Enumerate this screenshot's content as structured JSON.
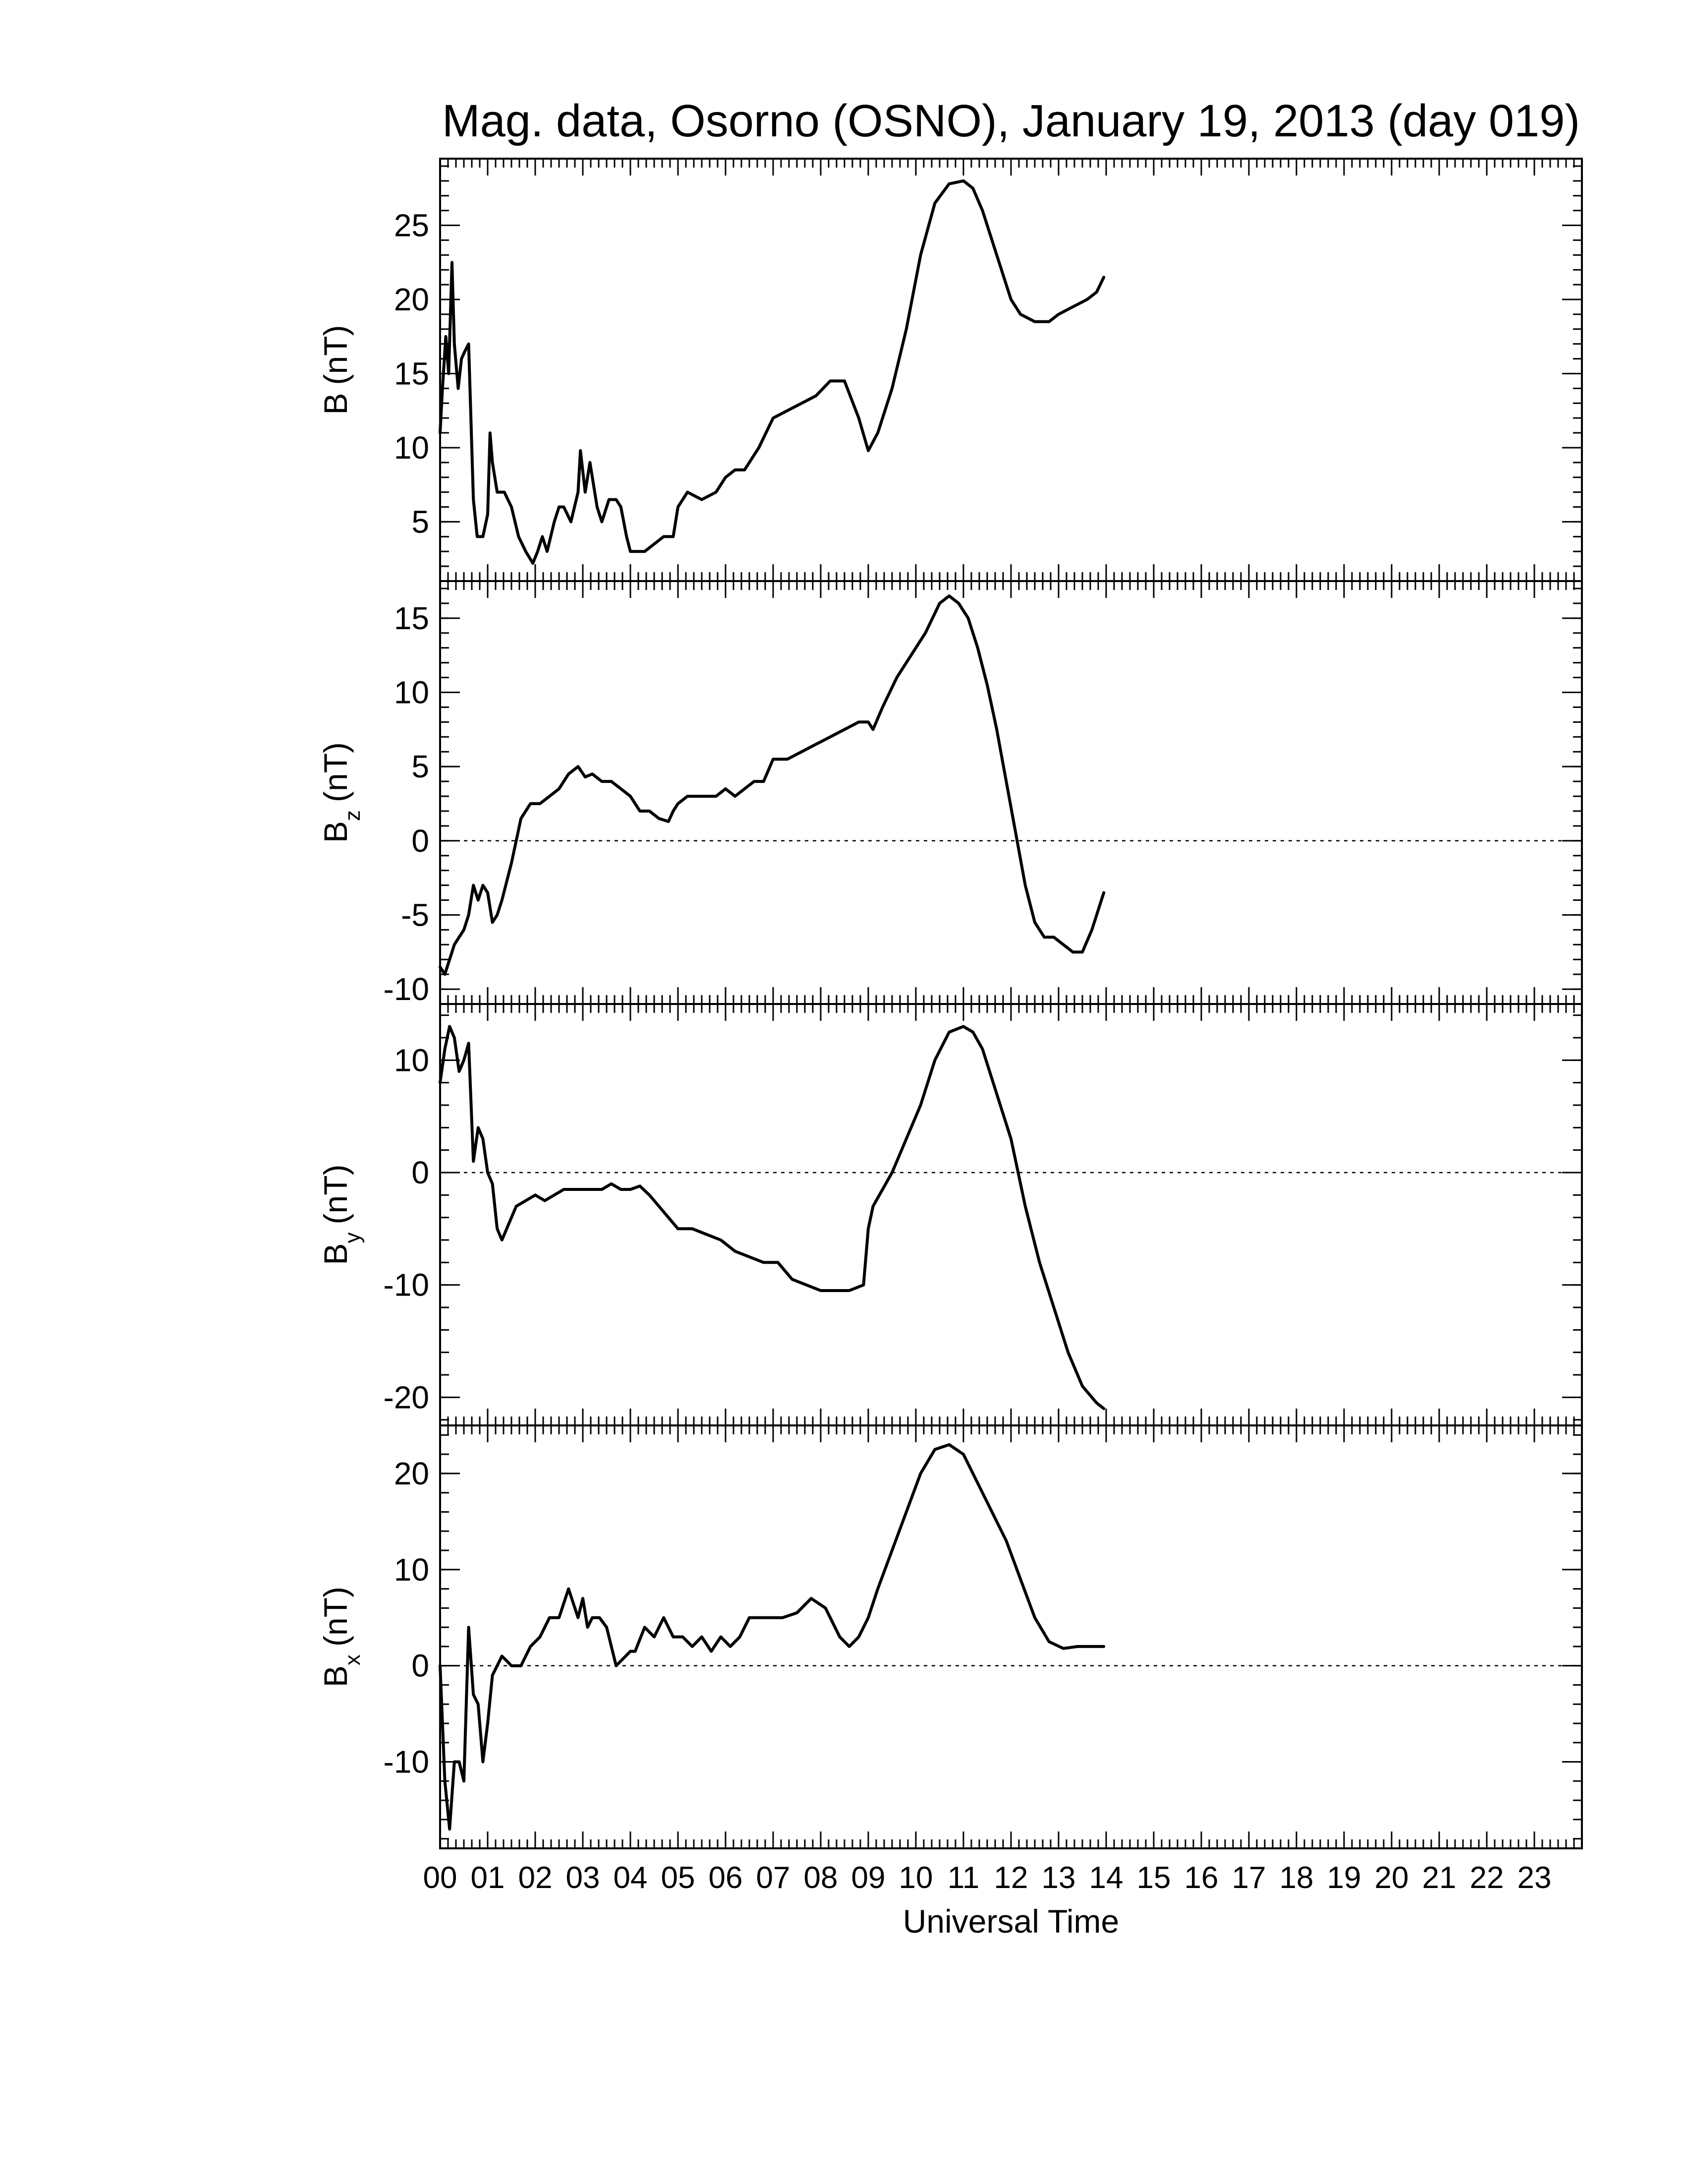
{
  "chart_data": {
    "type": "line",
    "title": "Mag. data, Osorno (OSNO), January 19, 2013 (day 019)",
    "xlabel": "Universal Time",
    "xlim": [
      0,
      24
    ],
    "x_tick_labels": [
      "00",
      "01",
      "02",
      "03",
      "04",
      "05",
      "06",
      "07",
      "08",
      "09",
      "10",
      "11",
      "12",
      "13",
      "14",
      "15",
      "16",
      "17",
      "18",
      "19",
      "20",
      "21",
      "22",
      "23"
    ],
    "line_color": "#000000",
    "panels": [
      {
        "id": "B",
        "ylabel_main": "B",
        "ylabel_sub": "",
        "ylabel_unit": "(nT)",
        "ylim": [
          1,
          29.5
        ],
        "yticks": [
          5,
          10,
          15,
          20,
          25
        ],
        "zero_line": false,
        "series": [
          {
            "x": [
              0,
              0.05,
              0.12,
              0.18,
              0.25,
              0.3,
              0.38,
              0.45,
              0.52,
              0.6,
              0.7,
              0.78,
              0.9,
              1.0,
              1.05,
              1.1,
              1.2,
              1.35,
              1.5,
              1.65,
              1.8,
              1.95,
              2.05,
              2.15,
              2.25,
              2.4,
              2.5,
              2.6,
              2.75,
              2.9,
              2.95,
              3.05,
              3.15,
              3.3,
              3.4,
              3.55,
              3.7,
              3.8,
              3.92,
              4.0,
              4.1,
              4.3,
              4.5,
              4.7,
              4.8,
              4.9,
              5.0,
              5.2,
              5.5,
              5.8,
              6.0,
              6.2,
              6.4,
              6.7,
              7.0,
              7.3,
              7.6,
              7.9,
              8.2,
              8.5,
              8.8,
              9.0,
              9.2,
              9.5,
              9.8,
              10.1,
              10.4,
              10.7,
              11.0,
              11.2,
              11.4,
              11.7,
              12.0,
              12.2,
              12.5,
              12.8,
              13.0,
              13.3,
              13.6,
              13.8,
              13.95
            ],
            "y": [
              11,
              14,
              17.5,
              15,
              22.5,
              17,
              14,
              16,
              16.5,
              17,
              6.5,
              4,
              4,
              5.5,
              11,
              9,
              7,
              7,
              6,
              4,
              3,
              2.2,
              3,
              4,
              3,
              5,
              6,
              6,
              5,
              7,
              9.8,
              7,
              9,
              6,
              5,
              6.5,
              6.5,
              6,
              4,
              3,
              3,
              3,
              3.5,
              4,
              4,
              4,
              6,
              7,
              6.5,
              7,
              8,
              8.5,
              8.5,
              10,
              12,
              12.5,
              13,
              13.5,
              14.5,
              14.5,
              12,
              9.8,
              11,
              14,
              18,
              23,
              26.5,
              27.8,
              28,
              27.5,
              26,
              23,
              20,
              19,
              18.5,
              18.5,
              19,
              19.5,
              20,
              20.5,
              21.5
            ]
          }
        ]
      },
      {
        "id": "Bz",
        "ylabel_main": "B",
        "ylabel_sub": "z",
        "ylabel_unit": "(nT)",
        "ylim": [
          -11,
          17.5
        ],
        "yticks": [
          -10,
          -5,
          0,
          5,
          10,
          15
        ],
        "zero_line": true,
        "series": [
          {
            "x": [
              0,
              0.1,
              0.2,
              0.3,
              0.4,
              0.5,
              0.6,
              0.7,
              0.8,
              0.9,
              1.0,
              1.1,
              1.2,
              1.3,
              1.5,
              1.7,
              1.9,
              2.1,
              2.3,
              2.5,
              2.7,
              2.9,
              3.05,
              3.2,
              3.4,
              3.6,
              3.8,
              4.0,
              4.2,
              4.4,
              4.6,
              4.8,
              4.9,
              5.0,
              5.2,
              5.5,
              5.8,
              6.0,
              6.2,
              6.4,
              6.6,
              6.8,
              7.0,
              7.3,
              7.6,
              7.9,
              8.2,
              8.5,
              8.8,
              9.0,
              9.1,
              9.3,
              9.6,
              9.9,
              10.2,
              10.5,
              10.7,
              10.9,
              11.1,
              11.3,
              11.5,
              11.7,
              11.9,
              12.1,
              12.3,
              12.5,
              12.7,
              12.9,
              13.1,
              13.3,
              13.5,
              13.7,
              13.95
            ],
            "y": [
              -8.5,
              -9,
              -8,
              -7,
              -6.5,
              -6,
              -5,
              -3,
              -4,
              -3,
              -3.5,
              -5.5,
              -5,
              -4,
              -1.5,
              1.5,
              2.5,
              2.5,
              3,
              3.5,
              4.5,
              5,
              4.3,
              4.5,
              4,
              4,
              3.5,
              3,
              2,
              2,
              1.5,
              1.3,
              2,
              2.5,
              3,
              3,
              3,
              3.5,
              3,
              3.5,
              4,
              4,
              5.5,
              5.5,
              6,
              6.5,
              7,
              7.5,
              8,
              8,
              7.5,
              9,
              11,
              12.5,
              14,
              16,
              16.5,
              16,
              15,
              13,
              10.5,
              7.5,
              4,
              0.5,
              -3,
              -5.5,
              -6.5,
              -6.5,
              -7,
              -7.5,
              -7.5,
              -6,
              -3.5
            ]
          }
        ]
      },
      {
        "id": "By",
        "ylabel_main": "B",
        "ylabel_sub": "y",
        "ylabel_unit": "(nT)",
        "ylim": [
          -22.5,
          15
        ],
        "yticks": [
          -20,
          -10,
          0,
          10
        ],
        "zero_line": true,
        "series": [
          {
            "x": [
              0,
              0.1,
              0.2,
              0.3,
              0.4,
              0.5,
              0.6,
              0.7,
              0.8,
              0.9,
              1.0,
              1.1,
              1.2,
              1.3,
              1.4,
              1.6,
              1.8,
              2.0,
              2.2,
              2.4,
              2.6,
              2.8,
              3.0,
              3.2,
              3.4,
              3.6,
              3.8,
              4.0,
              4.2,
              4.4,
              4.6,
              4.8,
              5.0,
              5.3,
              5.6,
              5.9,
              6.2,
              6.5,
              6.8,
              7.1,
              7.4,
              7.7,
              8.0,
              8.3,
              8.6,
              8.9,
              9.0,
              9.1,
              9.3,
              9.5,
              9.8,
              10.1,
              10.4,
              10.7,
              11.0,
              11.2,
              11.4,
              11.7,
              12.0,
              12.3,
              12.6,
              12.9,
              13.2,
              13.5,
              13.8,
              13.95
            ],
            "y": [
              8,
              11,
              13,
              12,
              9,
              10,
              11.5,
              1,
              4,
              3,
              0,
              -1,
              -5,
              -6,
              -5,
              -3,
              -2.5,
              -2,
              -2.5,
              -2,
              -1.5,
              -1.5,
              -1.5,
              -1.5,
              -1.5,
              -1,
              -1.5,
              -1.5,
              -1.2,
              -2,
              -3,
              -4,
              -5,
              -5,
              -5.5,
              -6,
              -7,
              -7.5,
              -8,
              -8,
              -9.5,
              -10,
              -10.5,
              -10.5,
              -10.5,
              -10,
              -5,
              -3,
              -1.5,
              0,
              3,
              6,
              10,
              12.5,
              13,
              12.5,
              11,
              7,
              3,
              -3,
              -8,
              -12,
              -16,
              -19,
              -20.5,
              -21
            ]
          }
        ]
      },
      {
        "id": "Bx",
        "ylabel_main": "B",
        "ylabel_sub": "x",
        "ylabel_unit": "(nT)",
        "ylim": [
          -19,
          25
        ],
        "yticks": [
          -10,
          0,
          10,
          20
        ],
        "zero_line": true,
        "series": [
          {
            "x": [
              0,
              0.1,
              0.2,
              0.3,
              0.4,
              0.5,
              0.6,
              0.7,
              0.8,
              0.9,
              1.0,
              1.1,
              1.2,
              1.3,
              1.5,
              1.7,
              1.9,
              2.1,
              2.3,
              2.5,
              2.7,
              2.9,
              3.0,
              3.1,
              3.2,
              3.35,
              3.5,
              3.7,
              3.9,
              4.0,
              4.1,
              4.3,
              4.5,
              4.7,
              4.9,
              5.1,
              5.3,
              5.5,
              5.7,
              5.9,
              6.1,
              6.3,
              6.5,
              6.7,
              6.9,
              7.2,
              7.5,
              7.8,
              8.1,
              8.4,
              8.6,
              8.8,
              9.0,
              9.2,
              9.5,
              9.8,
              10.1,
              10.4,
              10.7,
              11.0,
              11.3,
              11.6,
              11.9,
              12.2,
              12.5,
              12.8,
              13.1,
              13.4,
              13.7,
              13.95
            ],
            "y": [
              0,
              -12,
              -17,
              -10,
              -10,
              -12,
              4,
              -3,
              -4,
              -10,
              -6,
              -1,
              0,
              1,
              0,
              0,
              2,
              3,
              5,
              5,
              8,
              5,
              7,
              4,
              5,
              5,
              4,
              0,
              1,
              1.5,
              1.5,
              4,
              3,
              5,
              3,
              3,
              2,
              3,
              1.5,
              3,
              2,
              3,
              5,
              5,
              5,
              5,
              5.5,
              7,
              6,
              3,
              2,
              3,
              5,
              8,
              12,
              16,
              20,
              22.5,
              23,
              22,
              19,
              16,
              13,
              9,
              5,
              2.5,
              1.8,
              2,
              2,
              2
            ]
          }
        ]
      }
    ]
  }
}
